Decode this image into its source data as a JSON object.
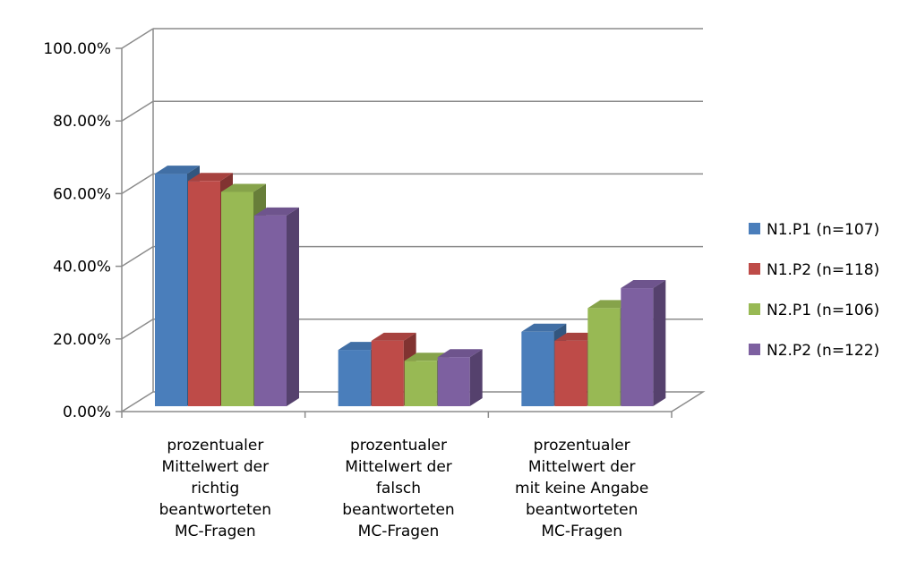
{
  "chart_data": {
    "type": "bar",
    "title": "",
    "xlabel": "",
    "ylabel": "",
    "ylim": [
      0,
      100
    ],
    "y_ticks": [
      "0.00%",
      "20.00%",
      "40.00%",
      "60.00%",
      "80.00%",
      "100.00%"
    ],
    "grid": true,
    "legend_position": "right",
    "categories": [
      [
        "prozentualer",
        "Mittelwert der",
        "richtig",
        "beantworteten",
        "MC-Fragen"
      ],
      [
        "prozentualer",
        "Mittelwert der",
        "falsch",
        "beantworteten",
        "MC-Fragen"
      ],
      [
        "prozentualer",
        "Mittelwert der",
        "mit keine Angabe",
        "beantworteten",
        "MC-Fragen"
      ]
    ],
    "series": [
      {
        "name": "N1.P1 (n=107)",
        "color": "#4A7EBB",
        "values": [
          64.0,
          15.5,
          20.5
        ]
      },
      {
        "name": "N1.P2 (n=118)",
        "color": "#BE4B48",
        "values": [
          62.0,
          18.0,
          18.0
        ]
      },
      {
        "name": "N2.P1 (n=106)",
        "color": "#98B954",
        "values": [
          59.0,
          12.5,
          27.0
        ]
      },
      {
        "name": "N2.P2 (n=122)",
        "color": "#7D60A0",
        "values": [
          52.5,
          13.5,
          32.5
        ]
      }
    ]
  }
}
